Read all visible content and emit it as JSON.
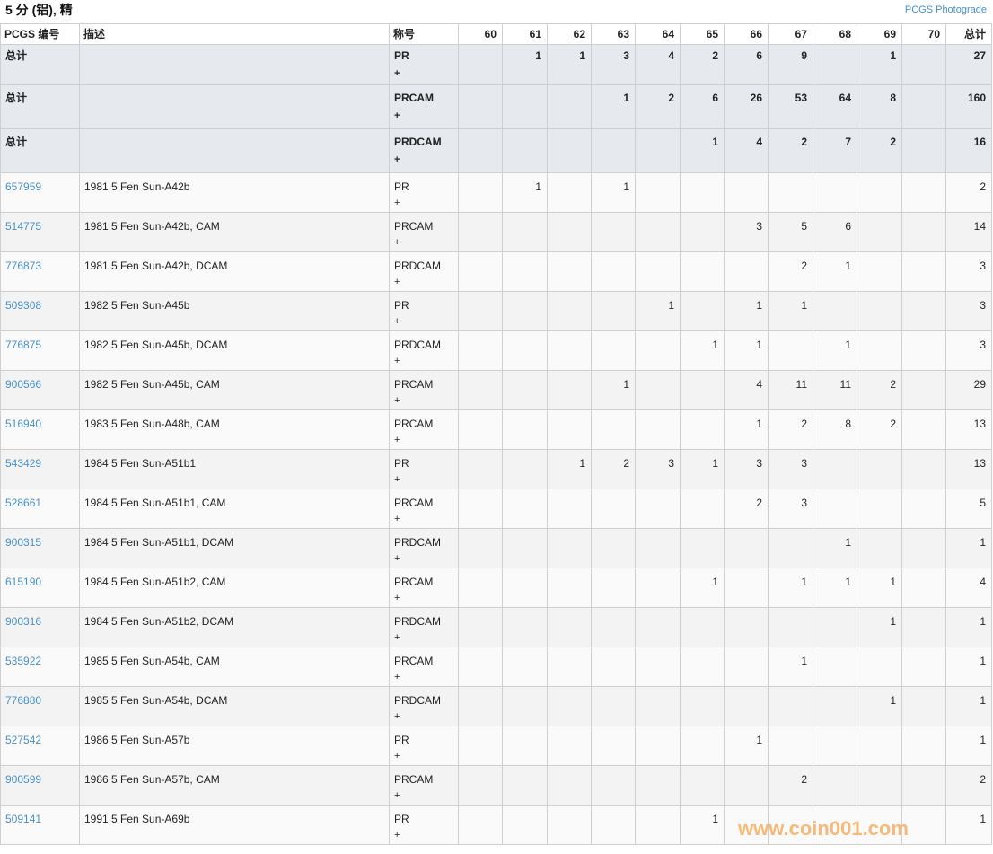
{
  "title": "5 分 (铝), 精",
  "photograde_link": "PCGS Photograde",
  "columns": [
    "PCGS 编号",
    "描述",
    "称号",
    "60",
    "61",
    "62",
    "63",
    "64",
    "65",
    "66",
    "67",
    "68",
    "69",
    "70",
    "总计"
  ],
  "totals": [
    {
      "label": "总计",
      "desc": "",
      "designation": "PR",
      "plus": "+",
      "grades": [
        "",
        "1",
        "1",
        "3",
        "4",
        "2",
        "6",
        "9",
        "",
        "1",
        ""
      ],
      "total": "27"
    },
    {
      "label": "总计",
      "desc": "",
      "designation": "PRCAM",
      "plus": "+",
      "grades": [
        "",
        "",
        "",
        "1",
        "2",
        "6",
        "26",
        "53",
        "64",
        "8",
        ""
      ],
      "total": "160"
    },
    {
      "label": "总计",
      "desc": "",
      "designation": "PRDCAM",
      "plus": "+",
      "grades": [
        "",
        "",
        "",
        "",
        "",
        "1",
        "4",
        "2",
        "7",
        "2",
        ""
      ],
      "total": "16"
    }
  ],
  "rows": [
    {
      "pcgs": "657959",
      "desc": "1981 5 Fen Sun-A42b",
      "designation": "PR",
      "plus": "+",
      "grades": [
        "",
        "1",
        "",
        "1",
        "",
        "",
        "",
        "",
        "",
        "",
        ""
      ],
      "total": "2"
    },
    {
      "pcgs": "514775",
      "desc": "1981 5 Fen Sun-A42b, CAM",
      "designation": "PRCAM",
      "plus": "+",
      "grades": [
        "",
        "",
        "",
        "",
        "",
        "",
        "3",
        "5",
        "6",
        "",
        ""
      ],
      "total": "14"
    },
    {
      "pcgs": "776873",
      "desc": "1981 5 Fen Sun-A42b, DCAM",
      "designation": "PRDCAM",
      "plus": "+",
      "grades": [
        "",
        "",
        "",
        "",
        "",
        "",
        "",
        "2",
        "1",
        "",
        ""
      ],
      "total": "3"
    },
    {
      "pcgs": "509308",
      "desc": "1982 5 Fen Sun-A45b",
      "designation": "PR",
      "plus": "+",
      "grades": [
        "",
        "",
        "",
        "",
        "1",
        "",
        "1",
        "1",
        "",
        "",
        ""
      ],
      "total": "3"
    },
    {
      "pcgs": "776875",
      "desc": "1982 5 Fen Sun-A45b, DCAM",
      "designation": "PRDCAM",
      "plus": "+",
      "grades": [
        "",
        "",
        "",
        "",
        "",
        "1",
        "1",
        "",
        "1",
        "",
        ""
      ],
      "total": "3"
    },
    {
      "pcgs": "900566",
      "desc": "1982 5 Fen Sun-A45b, CAM",
      "designation": "PRCAM",
      "plus": "+",
      "grades": [
        "",
        "",
        "",
        "1",
        "",
        "",
        "4",
        "11",
        "11",
        "2",
        ""
      ],
      "total": "29"
    },
    {
      "pcgs": "516940",
      "desc": "1983 5 Fen Sun-A48b, CAM",
      "designation": "PRCAM",
      "plus": "+",
      "grades": [
        "",
        "",
        "",
        "",
        "",
        "",
        "1",
        "2",
        "8",
        "2",
        ""
      ],
      "total": "13"
    },
    {
      "pcgs": "543429",
      "desc": "1984 5 Fen Sun-A51b1",
      "designation": "PR",
      "plus": "+",
      "grades": [
        "",
        "",
        "1",
        "2",
        "3",
        "1",
        "3",
        "3",
        "",
        "",
        ""
      ],
      "total": "13"
    },
    {
      "pcgs": "528661",
      "desc": "1984 5 Fen Sun-A51b1, CAM",
      "designation": "PRCAM",
      "plus": "+",
      "grades": [
        "",
        "",
        "",
        "",
        "",
        "",
        "2",
        "3",
        "",
        "",
        ""
      ],
      "total": "5"
    },
    {
      "pcgs": "900315",
      "desc": "1984 5 Fen Sun-A51b1, DCAM",
      "designation": "PRDCAM",
      "plus": "+",
      "grades": [
        "",
        "",
        "",
        "",
        "",
        "",
        "",
        "",
        "1",
        "",
        ""
      ],
      "total": "1"
    },
    {
      "pcgs": "615190",
      "desc": "1984 5 Fen Sun-A51b2, CAM",
      "designation": "PRCAM",
      "plus": "+",
      "grades": [
        "",
        "",
        "",
        "",
        "",
        "1",
        "",
        "1",
        "1",
        "1",
        ""
      ],
      "total": "4"
    },
    {
      "pcgs": "900316",
      "desc": "1984 5 Fen Sun-A51b2, DCAM",
      "designation": "PRDCAM",
      "plus": "+",
      "grades": [
        "",
        "",
        "",
        "",
        "",
        "",
        "",
        "",
        "",
        "1",
        ""
      ],
      "total": "1"
    },
    {
      "pcgs": "535922",
      "desc": "1985 5 Fen Sun-A54b, CAM",
      "designation": "PRCAM",
      "plus": "+",
      "grades": [
        "",
        "",
        "",
        "",
        "",
        "",
        "",
        "1",
        "",
        "",
        ""
      ],
      "total": "1"
    },
    {
      "pcgs": "776880",
      "desc": "1985 5 Fen Sun-A54b, DCAM",
      "designation": "PRDCAM",
      "plus": "+",
      "grades": [
        "",
        "",
        "",
        "",
        "",
        "",
        "",
        "",
        "",
        "1",
        ""
      ],
      "total": "1"
    },
    {
      "pcgs": "527542",
      "desc": "1986 5 Fen Sun-A57b",
      "designation": "PR",
      "plus": "+",
      "grades": [
        "",
        "",
        "",
        "",
        "",
        "",
        "1",
        "",
        "",
        "",
        ""
      ],
      "total": "1"
    },
    {
      "pcgs": "900599",
      "desc": "1986 5 Fen Sun-A57b, CAM",
      "designation": "PRCAM",
      "plus": "+",
      "grades": [
        "",
        "",
        "",
        "",
        "",
        "",
        "",
        "2",
        "",
        "",
        ""
      ],
      "total": "2"
    },
    {
      "pcgs": "509141",
      "desc": "1991 5 Fen Sun-A69b",
      "designation": "PR",
      "plus": "+",
      "grades": [
        "",
        "",
        "",
        "",
        "",
        "1",
        "",
        "",
        "",
        "",
        ""
      ],
      "total": "1"
    }
  ],
  "watermark": "www.coin001.com",
  "colors": {
    "link": "#4a90c8",
    "total_row_bg": "#e6eaee",
    "watermark": "#f7b26a"
  }
}
